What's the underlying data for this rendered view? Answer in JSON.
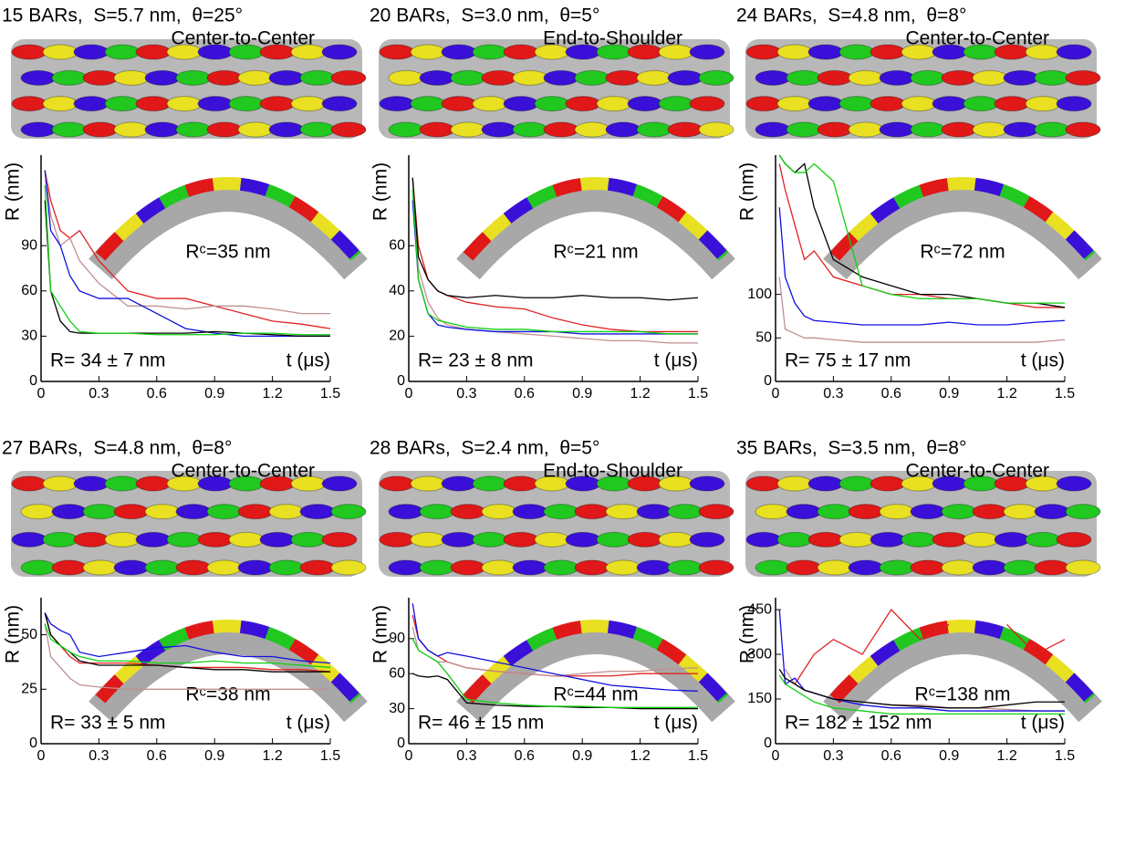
{
  "chart_data": [
    {
      "type": "line",
      "title": "15 BARs,  S=5.7 nm,  θ=25°",
      "subtitle": "Center-to-Center",
      "annotation": "Rᶜ=35 nm",
      "result": "R= 34 ± 7 nm",
      "xlabel": "t (μs)",
      "ylabel": "R (nm)",
      "x": [
        0.02,
        0.05,
        0.1,
        0.15,
        0.2,
        0.3,
        0.45,
        0.6,
        0.75,
        0.9,
        1.05,
        1.2,
        1.35,
        1.5
      ],
      "xlim": [
        0,
        1.5
      ],
      "xticks": [
        0,
        0.3,
        0.6,
        0.9,
        1.2,
        1.5
      ],
      "ylim": [
        0,
        150
      ],
      "yticks": [
        0,
        30,
        60,
        90
      ],
      "series": [
        {
          "color": "#e02020",
          "values": [
            140,
            120,
            100,
            95,
            100,
            80,
            60,
            55,
            55,
            50,
            45,
            40,
            38,
            35
          ]
        },
        {
          "color": "#c09090",
          "values": [
            140,
            110,
            90,
            95,
            80,
            65,
            50,
            50,
            48,
            50,
            50,
            48,
            45,
            45
          ]
        },
        {
          "color": "#1010e0",
          "values": [
            140,
            100,
            90,
            70,
            60,
            55,
            55,
            45,
            35,
            32,
            30,
            30,
            30,
            30
          ]
        },
        {
          "color": "#000000",
          "values": [
            120,
            60,
            40,
            33,
            32,
            32,
            32,
            32,
            32,
            33,
            32,
            31,
            30,
            30
          ]
        },
        {
          "color": "#10d010",
          "values": [
            130,
            60,
            50,
            40,
            33,
            32,
            32,
            31,
            31,
            31,
            32,
            32,
            31,
            31
          ]
        }
      ]
    },
    {
      "type": "line",
      "title": "20 BARs,  S=3.0 nm,  θ=5°",
      "subtitle": "End-to-Shoulder",
      "annotation": "Rᶜ=21 nm",
      "result": "R= 23 ± 8 nm",
      "xlabel": "t (μs)",
      "ylabel": "R (nm)",
      "x": [
        0.02,
        0.05,
        0.1,
        0.15,
        0.2,
        0.3,
        0.45,
        0.6,
        0.75,
        0.9,
        1.05,
        1.2,
        1.35,
        1.5
      ],
      "xlim": [
        0,
        1.5
      ],
      "xticks": [
        0,
        0.3,
        0.6,
        0.9,
        1.2,
        1.5
      ],
      "ylim": [
        0,
        100
      ],
      "yticks": [
        0,
        20,
        40,
        60
      ],
      "series": [
        {
          "color": "#e02020",
          "values": [
            90,
            60,
            45,
            40,
            38,
            35,
            33,
            32,
            28,
            25,
            23,
            22,
            22,
            22
          ]
        },
        {
          "color": "#c09090",
          "values": [
            85,
            50,
            35,
            28,
            25,
            23,
            22,
            21,
            20,
            19,
            18,
            18,
            17,
            17
          ]
        },
        {
          "color": "#1010e0",
          "values": [
            80,
            45,
            30,
            25,
            24,
            23,
            22,
            22,
            22,
            21,
            21,
            21,
            21,
            21
          ]
        },
        {
          "color": "#000000",
          "values": [
            90,
            55,
            45,
            40,
            38,
            37,
            38,
            37,
            37,
            38,
            37,
            37,
            36,
            37
          ]
        },
        {
          "color": "#10d010",
          "values": [
            85,
            45,
            30,
            27,
            26,
            24,
            23,
            23,
            22,
            22,
            22,
            22,
            21,
            21
          ]
        }
      ]
    },
    {
      "type": "line",
      "title": "24 BARs,  S=4.8 nm,  θ=8°",
      "subtitle": "Center-to-Center",
      "annotation": "Rᶜ=72 nm",
      "result": "R= 75 ± 17 nm",
      "xlabel": "t (μs)",
      "ylabel": "R (nm)",
      "x": [
        0.02,
        0.05,
        0.1,
        0.15,
        0.2,
        0.3,
        0.45,
        0.6,
        0.75,
        0.9,
        1.05,
        1.2,
        1.35,
        1.5
      ],
      "xlim": [
        0,
        1.5
      ],
      "xticks": [
        0,
        0.3,
        0.6,
        0.9,
        1.2,
        1.5
      ],
      "ylim": [
        0,
        260
      ],
      "yticks": [
        0,
        50,
        100
      ],
      "series": [
        {
          "color": "#e02020",
          "values": [
            250,
            220,
            180,
            140,
            150,
            120,
            110,
            100,
            100,
            95,
            95,
            90,
            85,
            85
          ]
        },
        {
          "color": "#c09090",
          "values": [
            120,
            60,
            55,
            50,
            50,
            48,
            45,
            45,
            45,
            45,
            45,
            45,
            45,
            48
          ]
        },
        {
          "color": "#1010e0",
          "values": [
            200,
            120,
            90,
            75,
            70,
            68,
            65,
            65,
            65,
            68,
            65,
            65,
            68,
            70
          ]
        },
        {
          "color": "#000000",
          "values": [
            260,
            250,
            240,
            250,
            200,
            140,
            120,
            110,
            100,
            100,
            95,
            90,
            90,
            85
          ]
        },
        {
          "color": "#10d010",
          "values": [
            260,
            250,
            240,
            240,
            250,
            230,
            110,
            100,
            95,
            95,
            95,
            90,
            90,
            90
          ]
        }
      ]
    },
    {
      "type": "line",
      "title": "27 BARs,  S=4.8 nm,  θ=8°",
      "subtitle": "Center-to-Center",
      "annotation": "Rᶜ=38 nm",
      "result": "R= 33 ± 5 nm",
      "xlabel": "t (μs)",
      "ylabel": "R (nm)",
      "x": [
        0.02,
        0.05,
        0.1,
        0.15,
        0.2,
        0.3,
        0.45,
        0.6,
        0.75,
        0.9,
        1.05,
        1.2,
        1.35,
        1.5
      ],
      "xlim": [
        0,
        1.5
      ],
      "xticks": [
        0,
        0.3,
        0.6,
        0.9,
        1.2,
        1.5
      ],
      "ylim": [
        0,
        67
      ],
      "yticks": [
        0,
        25,
        50
      ],
      "series": [
        {
          "color": "#e02020",
          "values": [
            60,
            50,
            45,
            40,
            37,
            37,
            37,
            36,
            35,
            35,
            35,
            34,
            34,
            33
          ]
        },
        {
          "color": "#c09090",
          "values": [
            55,
            40,
            35,
            30,
            27,
            26,
            25,
            25,
            25,
            25,
            25,
            25,
            25,
            25
          ]
        },
        {
          "color": "#1010e0",
          "values": [
            60,
            55,
            52,
            50,
            42,
            40,
            42,
            44,
            45,
            42,
            40,
            40,
            38,
            37
          ]
        },
        {
          "color": "#000000",
          "values": [
            60,
            50,
            45,
            42,
            38,
            36,
            36,
            36,
            35,
            34,
            34,
            33,
            33,
            33
          ]
        },
        {
          "color": "#10d010",
          "values": [
            55,
            48,
            45,
            42,
            40,
            38,
            38,
            37,
            37,
            38,
            37,
            37,
            36,
            35
          ]
        }
      ]
    },
    {
      "type": "line",
      "title": "28 BARs,  S=2.4 nm,  θ=5°",
      "subtitle": "End-to-Shoulder",
      "annotation": "Rᶜ=44 nm",
      "result": "R= 46 ± 15 nm",
      "xlabel": "t (μs)",
      "ylabel": "R (nm)",
      "x": [
        0.02,
        0.05,
        0.1,
        0.15,
        0.2,
        0.3,
        0.45,
        0.6,
        0.75,
        0.9,
        1.05,
        1.2,
        1.35,
        1.5
      ],
      "xlim": [
        0,
        1.5
      ],
      "xticks": [
        0,
        0.3,
        0.6,
        0.9,
        1.2,
        1.5
      ],
      "ylim": [
        0,
        125
      ],
      "yticks": [
        0,
        30,
        60,
        90
      ],
      "series": [
        {
          "color": "#e02020",
          "values": [
            110,
            90,
            80,
            75,
            70,
            65,
            62,
            60,
            58,
            58,
            58,
            60,
            60,
            60
          ]
        },
        {
          "color": "#c09090",
          "values": [
            100,
            80,
            75,
            70,
            70,
            65,
            62,
            60,
            58,
            60,
            62,
            62,
            64,
            65
          ]
        },
        {
          "color": "#1010e0",
          "values": [
            120,
            90,
            80,
            75,
            78,
            75,
            70,
            65,
            60,
            55,
            50,
            48,
            46,
            45
          ]
        },
        {
          "color": "#000000",
          "values": [
            60,
            58,
            57,
            58,
            55,
            35,
            33,
            32,
            32,
            31,
            31,
            30,
            30,
            30
          ]
        },
        {
          "color": "#10d010",
          "values": [
            90,
            80,
            75,
            70,
            60,
            38,
            35,
            33,
            32,
            32,
            31,
            31,
            31,
            31
          ]
        }
      ]
    },
    {
      "type": "line",
      "title": "35 BARs,  S=3.5 nm,  θ=8°",
      "subtitle": "Center-to-Center",
      "annotation": "Rᶜ=138 nm",
      "result": "R= 182 ± 152 nm",
      "xlabel": "t (μs)",
      "ylabel": "R (nm)",
      "x": [
        0.02,
        0.05,
        0.1,
        0.15,
        0.2,
        0.3,
        0.45,
        0.6,
        0.75,
        0.9,
        1.05,
        1.2,
        1.35,
        1.5
      ],
      "xlim": [
        0,
        1.5
      ],
      "xticks": [
        0,
        0.3,
        0.6,
        0.9,
        1.2,
        1.5
      ],
      "ylim": [
        0,
        490
      ],
      "yticks": [
        0,
        150,
        300,
        450
      ],
      "series": [
        {
          "color": "#e02020",
          "values": [
            null,
            null,
            200,
            250,
            300,
            350,
            300,
            450,
            350,
            400,
            null,
            400,
            300,
            350
          ]
        },
        {
          "color": "#c09090",
          "values": [
            null,
            250,
            200,
            180,
            170,
            150,
            140,
            130,
            130,
            120,
            120,
            115,
            110,
            110
          ]
        },
        {
          "color": "#1010e0",
          "values": [
            450,
            200,
            220,
            180,
            170,
            150,
            130,
            120,
            120,
            110,
            110,
            110,
            110,
            110
          ]
        },
        {
          "color": "#000000",
          "values": [
            250,
            220,
            200,
            180,
            170,
            150,
            140,
            130,
            125,
            120,
            120,
            130,
            140,
            140
          ]
        },
        {
          "color": "#10d010",
          "values": [
            230,
            200,
            180,
            160,
            140,
            120,
            110,
            100,
            100,
            100,
            100,
            100,
            100,
            100
          ]
        }
      ]
    }
  ]
}
